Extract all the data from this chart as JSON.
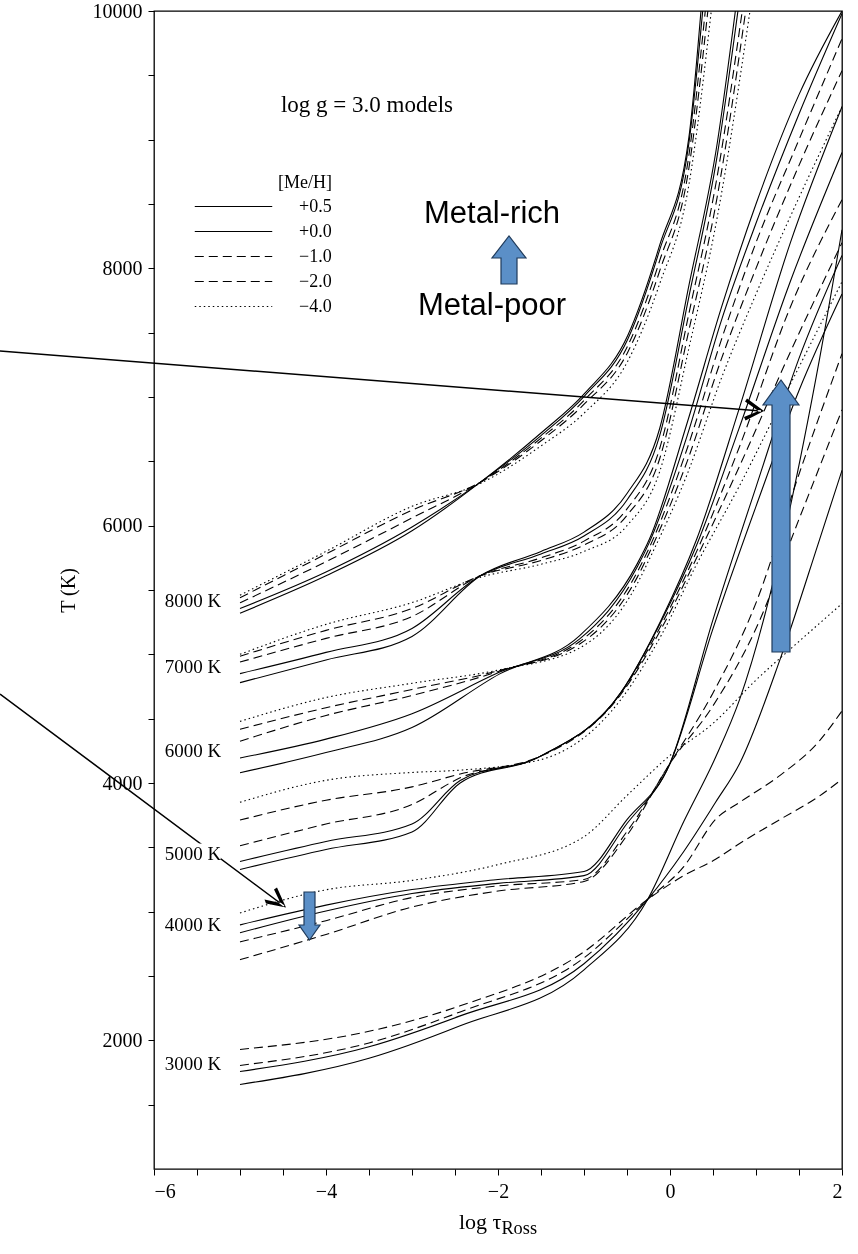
{
  "chart_data": {
    "type": "line",
    "xlabel": "log τ$_{Ross}$",
    "ylabel": "T (K)",
    "legend_title": "[Me/H]",
    "legend": "top left",
    "xlim": [
      -6,
      2
    ],
    "ylim": [
      1000,
      10000
    ],
    "xticks": [
      -6,
      {
        "value": -5.5,
        "label": null
      },
      {
        "value": -5,
        "label": null
      },
      {
        "value": -4.5,
        "label": null
      },
      -4,
      {
        "value": -3.5,
        "label": null
      },
      {
        "value": -3,
        "label": null
      },
      {
        "value": -2.5,
        "label": null
      },
      -2,
      {
        "value": -1.5,
        "label": null
      },
      {
        "value": -1,
        "label": null
      },
      {
        "value": -0.5,
        "label": null
      },
      0,
      {
        "value": 0.5,
        "label": null
      },
      {
        "value": 1,
        "label": null
      },
      {
        "value": 1.5,
        "label": null
      },
      2
    ],
    "yticks": [
      {
        "value": 1500,
        "label": null
      },
      2000,
      {
        "value": 2500,
        "label": null
      },
      {
        "value": 3000,
        "label": null
      },
      {
        "value": 3500,
        "label": null
      },
      4000,
      {
        "value": 4500,
        "label": null
      },
      {
        "value": 5000,
        "label": null
      },
      {
        "value": 5500,
        "label": null
      },
      6000,
      {
        "value": 6500,
        "label": null
      },
      {
        "value": 7000,
        "label": null
      },
      {
        "value": 7500,
        "label": null
      },
      8000,
      {
        "value": 8500,
        "label": null
      },
      {
        "value": 9000,
        "label": null
      },
      {
        "value": 9500,
        "label": null
      },
      10000
    ],
    "annotations": [
      "log g = 3.0 models",
      "Metal-rich",
      "Metal-poor",
      "8000 K",
      "7000 K",
      "6000 K",
      "5000 K",
      "4000 K",
      "3000 K"
    ],
    "series": [
      {
        "name": "+0.5",
        "color": "#000000",
        "line_style": "solid",
        "x": [
          -5,
          -4,
          -3,
          -2.2,
          -1.5,
          -0.99,
          -0.49,
          -0.12,
          0.22,
          0.36
        ],
        "values": [
          5320,
          5610,
          5960,
          6340,
          6720,
          7030,
          7480,
          8180,
          9020,
          10000
        ]
      },
      {
        "name": "+0.0",
        "color": "#000000",
        "line_style": "solid",
        "x": [
          -5,
          -4,
          -3,
          -2.2,
          -1.5,
          -0.99,
          -0.49,
          -0.12,
          0.22,
          0.38
        ],
        "values": [
          5356,
          5640,
          5990,
          6340,
          6700,
          7011,
          7451,
          8144,
          8975,
          10000
        ]
      },
      {
        "name": "−1.0",
        "color": "#000000",
        "line_style": "dashed",
        "x": [
          -5,
          -4,
          -3,
          -2.2,
          -1.5,
          -0.99,
          -0.49,
          -0.12,
          0.22,
          0.41
        ],
        "values": [
          5400,
          5720,
          6060,
          6340,
          6680,
          6980,
          7400,
          8060,
          8880,
          10000
        ]
      },
      {
        "name": "−2.0",
        "color": "#000000",
        "line_style": "dashed",
        "x": [
          -5,
          -4,
          -3,
          -2.2,
          -1.5,
          -0.99,
          -0.49,
          -0.12,
          0.22,
          0.44
        ],
        "values": [
          5440,
          5780,
          6120,
          6340,
          6660,
          6950,
          7350,
          7980,
          8780,
          10000
        ]
      },
      {
        "name": "−4.0",
        "color": "#000000",
        "line_style": "dotted",
        "x": [
          -5,
          -4,
          -3,
          -2.2,
          -1.5,
          -0.99,
          -0.49,
          -0.12,
          0.22,
          0.48
        ],
        "values": [
          5460,
          5800,
          6150,
          6330,
          6620,
          6880,
          7280,
          7880,
          8650,
          10000
        ]
      },
      {
        "color": "#000000",
        "line_style": "solid",
        "x": [
          -5,
          -4,
          -3,
          -2.2,
          -1.5,
          -1,
          -0.5,
          -0.12,
          0.22,
          0.55,
          0.76
        ],
        "values": [
          4780,
          4956,
          5139,
          5612,
          5800,
          5950,
          6250,
          6755,
          7867,
          8976,
          10000
        ]
      },
      {
        "color": "#000000",
        "line_style": "solid",
        "x": [
          -5,
          -4,
          -3,
          -2.2,
          -1.5,
          -1,
          -0.5,
          -0.12,
          0.22,
          0.55,
          0.79
        ],
        "values": [
          4850,
          5015,
          5201,
          5612,
          5780,
          5920,
          6200,
          6700,
          7780,
          8880,
          10000
        ]
      },
      {
        "color": "#000000",
        "line_style": "dashed",
        "x": [
          -5,
          -4,
          -3,
          -2.2,
          -1.5,
          -1,
          -0.5,
          -0.12,
          0.22,
          0.55,
          0.84
        ],
        "values": [
          4940,
          5124,
          5294,
          5612,
          5750,
          5880,
          6130,
          6600,
          7650,
          8720,
          10000
        ]
      },
      {
        "color": "#000000",
        "line_style": "dashed",
        "x": [
          -5,
          -4,
          -3,
          -2.2,
          -1.5,
          -1,
          -0.5,
          -0.12,
          0.22,
          0.55,
          0.88
        ],
        "values": [
          4985,
          5186,
          5356,
          5612,
          5730,
          5850,
          6080,
          6520,
          7520,
          8560,
          10000
        ]
      },
      {
        "color": "#000000",
        "line_style": "dotted",
        "x": [
          -5,
          -4,
          -3,
          -2.2,
          -1.5,
          -1,
          -0.5,
          -0.12,
          0.22,
          0.55,
          0.93
        ],
        "values": [
          5000,
          5233,
          5402,
          5600,
          5700,
          5800,
          6000,
          6420,
          7380,
          8400,
          10000
        ]
      },
      {
        "color": "#000000",
        "line_style": "solid",
        "x": [
          -5,
          -4,
          -3,
          -1.98,
          -1.05,
          -0.38,
          -0.24,
          0.2,
          0.6,
          1,
          1.5,
          2
        ],
        "values": [
          4080,
          4237,
          4431,
          4848,
          5146,
          5705,
          5894,
          6800,
          7700,
          8500,
          9350,
          10000
        ]
      },
      {
        "color": "#000000",
        "line_style": "solid",
        "x": [
          -5,
          -4,
          -3,
          -1.98,
          -1.05,
          -0.38,
          -0.24,
          0.2,
          0.6,
          1,
          1.5,
          2
        ],
        "values": [
          4194,
          4341,
          4539,
          4862,
          5120,
          5680,
          5870,
          6700,
          7600,
          8350,
          9200,
          9980
        ]
      },
      {
        "color": "#000000",
        "line_style": "dashed",
        "x": [
          -5,
          -4,
          -3,
          -1.98,
          -1.05,
          -0.38,
          -0.24,
          0.2,
          0.6,
          1,
          1.5,
          2
        ],
        "values": [
          4325,
          4525,
          4680,
          4870,
          5100,
          5640,
          5830,
          6600,
          7450,
          8200,
          9000,
          9785
        ]
      },
      {
        "color": "#000000",
        "line_style": "dashed",
        "x": [
          -5,
          -4,
          -3,
          -1.98,
          -1.05,
          -0.38,
          -0.24,
          0.2,
          0.6,
          1,
          1.5,
          2
        ],
        "values": [
          4418,
          4585,
          4727,
          4875,
          5080,
          5600,
          5790,
          6500,
          7300,
          8000,
          8800,
          9536
        ]
      },
      {
        "color": "#000000",
        "line_style": "dotted",
        "x": [
          -5,
          -4,
          -3,
          -1.98,
          -1.05,
          -0.38,
          -0.24,
          0.2,
          0.6,
          1,
          1.5,
          2
        ],
        "values": [
          4479,
          4664,
          4775,
          4880,
          5050,
          5550,
          5740,
          6400,
          7150,
          7800,
          8550,
          9256
        ]
      },
      {
        "color": "#000000",
        "line_style": "solid",
        "x": [
          -5,
          -4,
          -3,
          -2.44,
          -1.51,
          -0.57,
          -0.1,
          0.31,
          0.8,
          1.4,
          2
        ],
        "values": [
          3328,
          3483,
          3620,
          4000,
          4207,
          4704,
          5271,
          5894,
          6900,
          8200,
          9256
        ]
      },
      {
        "color": "#000000",
        "line_style": "solid",
        "x": [
          -5,
          -4,
          -3,
          -2.44,
          -1.51,
          -0.57,
          -0.1,
          0.31,
          0.8,
          1.4,
          2
        ],
        "values": [
          3390,
          3545,
          3681,
          4019,
          4207,
          4704,
          5260,
          5850,
          6750,
          7900,
          8900
        ]
      },
      {
        "color": "#000000",
        "line_style": "dashed",
        "x": [
          -5,
          -4,
          -3,
          -2.44,
          -1.51,
          -0.57,
          -0.1,
          0.31,
          0.8,
          1.4,
          2
        ],
        "values": [
          3512,
          3681,
          3833,
          4040,
          4207,
          4700,
          5230,
          5800,
          6600,
          7700,
          8533
        ]
      },
      {
        "color": "#000000",
        "line_style": "dashed",
        "x": [
          -5,
          -4,
          -3,
          -2.44,
          -1.51,
          -0.57,
          -0.1,
          0.31,
          0.8,
          1.4,
          2
        ],
        "values": [
          3712,
          3866,
          3970,
          4070,
          4207,
          4690,
          5200,
          5750,
          6450,
          7350,
          8199
        ]
      },
      {
        "color": "#000000",
        "line_style": "dotted",
        "x": [
          -5,
          -4,
          -3,
          -2.44,
          -1.51,
          -0.57,
          -0.1,
          0.31,
          0.8,
          1.4,
          2
        ],
        "values": [
          3850,
          4021,
          4082,
          4100,
          4180,
          4650,
          5150,
          5700,
          6300,
          7100,
          7896
        ]
      },
      {
        "color": "#000000",
        "line_style": "solid",
        "x": [
          -5,
          -4,
          -3,
          -2,
          -1,
          -0.5,
          0,
          0.5,
          1,
          1.5,
          2
        ],
        "values": [
          2897,
          3051,
          3172,
          3250,
          3312,
          3716,
          4152,
          5270,
          6300,
          7300,
          8100
        ]
      },
      {
        "color": "#000000",
        "line_style": "solid",
        "x": [
          -5,
          -4,
          -3,
          -2,
          -1,
          -0.5,
          0,
          0.5,
          1,
          1.5,
          2
        ],
        "values": [
          2836,
          3005,
          3141,
          3220,
          3280,
          3685,
          4152,
          5200,
          6150,
          7050,
          7800
        ]
      },
      {
        "color": "#000000",
        "line_style": "dashed",
        "x": [
          -5,
          -4,
          -3,
          -2,
          -1,
          -0.5,
          0,
          0.5,
          1,
          1.5,
          2
        ],
        "values": [
          2765,
          2930,
          3110,
          3200,
          3250,
          3623,
          4152,
          4700,
          5400,
          6400,
          7337
        ]
      },
      {
        "color": "#000000",
        "line_style": "dashed",
        "x": [
          -5,
          -4,
          -3,
          -2,
          -1,
          -0.5,
          0,
          0.5,
          1,
          1.5,
          2
        ],
        "values": [
          2627,
          2823,
          3036,
          3160,
          3235,
          3593,
          4152,
          4600,
          5200,
          6050,
          6900
        ]
      },
      {
        "color": "#000000",
        "line_style": "dotted",
        "x": [
          -5,
          -4,
          -3,
          -2,
          -1,
          -0.5,
          0,
          0.5,
          1,
          1.5,
          2
        ],
        "values": [
          2990,
          3170,
          3243,
          3366,
          3583,
          3903,
          4214,
          4463,
          4800,
          5100,
          5394
        ]
      },
      {
        "color": "#000000",
        "line_style": "solid",
        "x": [
          -5,
          -3.5,
          -2.44,
          -1,
          -0.26,
          0.16,
          0.53,
          0.81,
          1.28,
          1.74,
          2
        ],
        "values": [
          1657,
          1860,
          2113,
          2548,
          3095,
          3700,
          4200,
          4650,
          null,
          7300,
          8300
        ]
      },
      {
        "color": "#000000",
        "line_style": "solid",
        "x": [
          -5,
          -3.5,
          -2.44,
          -1,
          -0.26,
          0.16,
          0.53,
          0.81,
          1.28,
          1.74,
          2
        ],
        "values": [
          1758,
          1950,
          2190,
          2595,
          3095,
          3468,
          3850,
          4152,
          4961,
          5894,
          6430
        ]
      },
      {
        "color": "#000000",
        "line_style": "dashed",
        "x": [
          -5,
          -3.5,
          -2.44,
          -1,
          -0.26,
          0.16,
          0.53,
          0.81,
          1.28,
          1.74,
          2
        ],
        "values": [
          1805,
          1980,
          2221,
          2641,
          3095,
          3350,
          3717,
          3850,
          4059,
          4330,
          4560
        ]
      },
      {
        "color": "#000000",
        "line_style": "dashed",
        "x": [
          -5,
          -3.5,
          -2.44,
          -1,
          -0.26,
          0.16,
          0.53,
          0.81,
          1.28,
          1.74,
          2
        ],
        "values": [
          1929,
          2070,
          2268,
          2688,
          3095,
          3280,
          3407,
          3530,
          3717,
          3900,
          4030
        ]
      }
    ]
  }
}
